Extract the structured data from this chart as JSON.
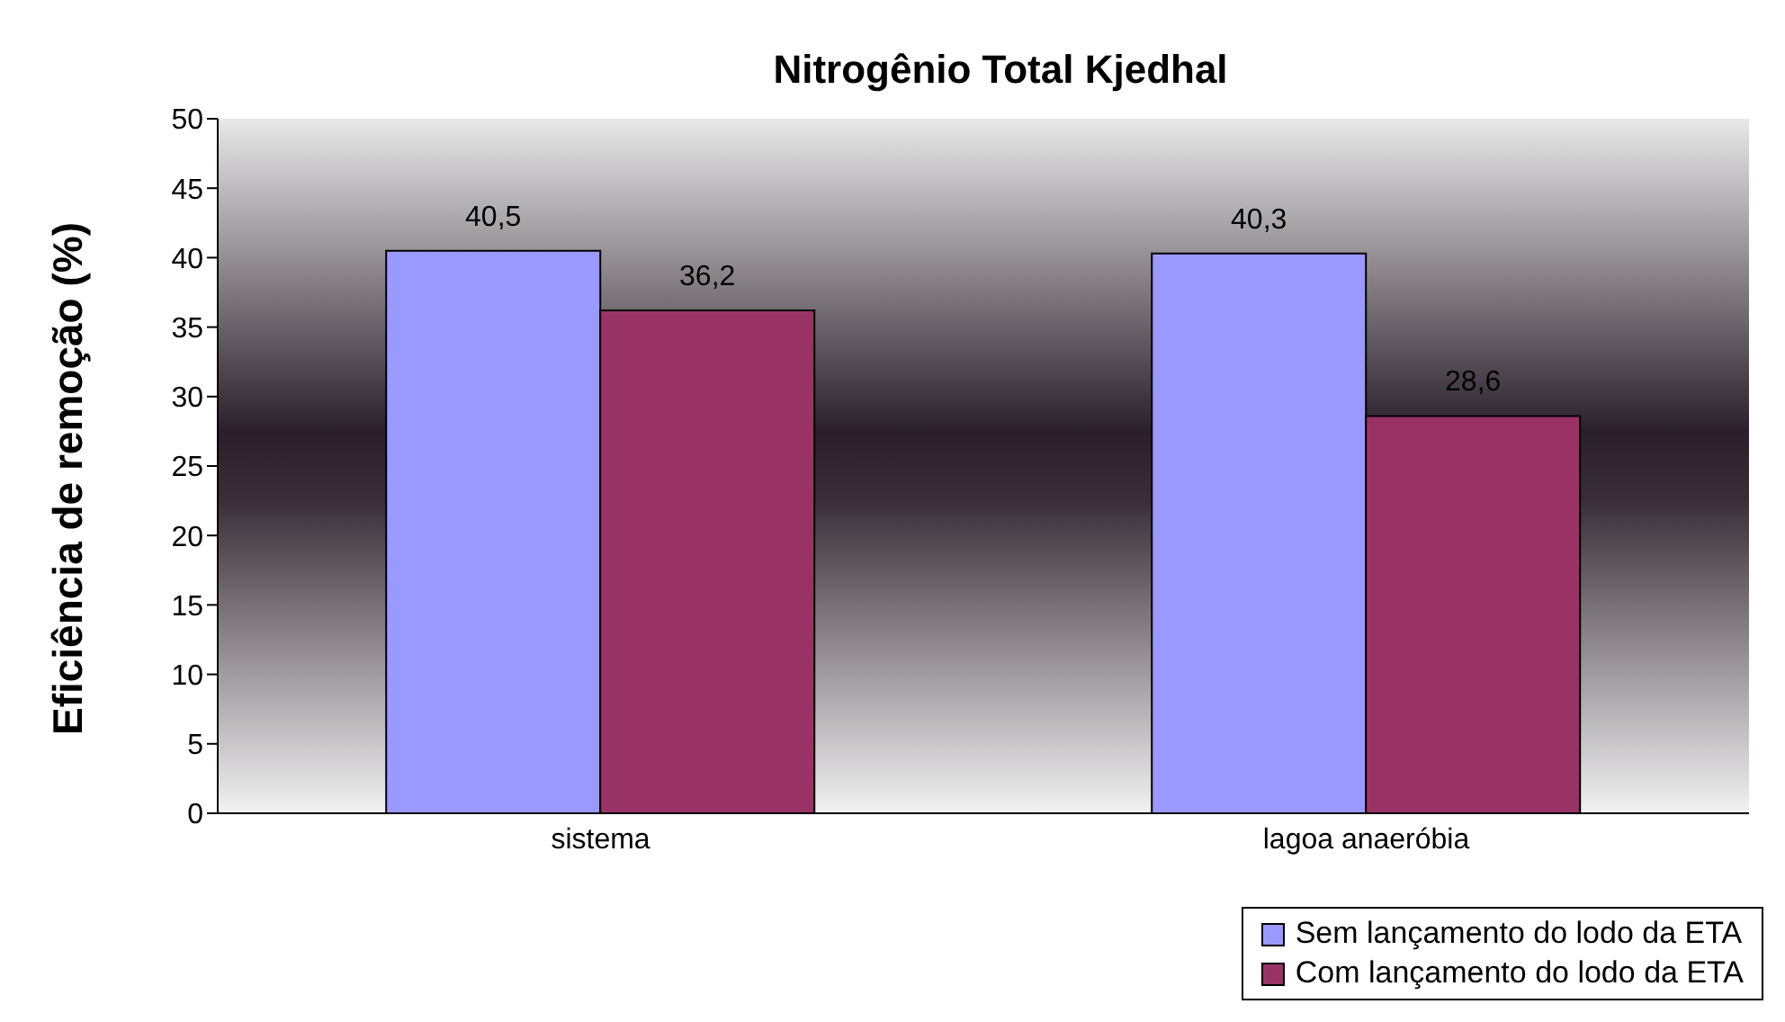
{
  "chart_data": {
    "type": "bar",
    "title": "Nitrogênio Total Kjedhal",
    "ylabel": "Eficiência de remoção (%)",
    "categories": [
      "sistema",
      "lagoa anaeróbia"
    ],
    "series": [
      {
        "name": "Sem lançamento do lodo da ETA",
        "color": "#9999ff",
        "values": [
          40.5,
          40.3
        ],
        "value_labels": [
          "40,5",
          "40,3"
        ]
      },
      {
        "name": "Com lançamento do lodo da ETA",
        "color": "#993366",
        "values": [
          36.2,
          28.6
        ],
        "value_labels": [
          "36,2",
          "28,6"
        ]
      }
    ],
    "ylim": [
      0,
      50
    ],
    "yticks": [
      0,
      5,
      10,
      15,
      20,
      25,
      30,
      35,
      40,
      45,
      50
    ],
    "legend": "bottom right"
  }
}
